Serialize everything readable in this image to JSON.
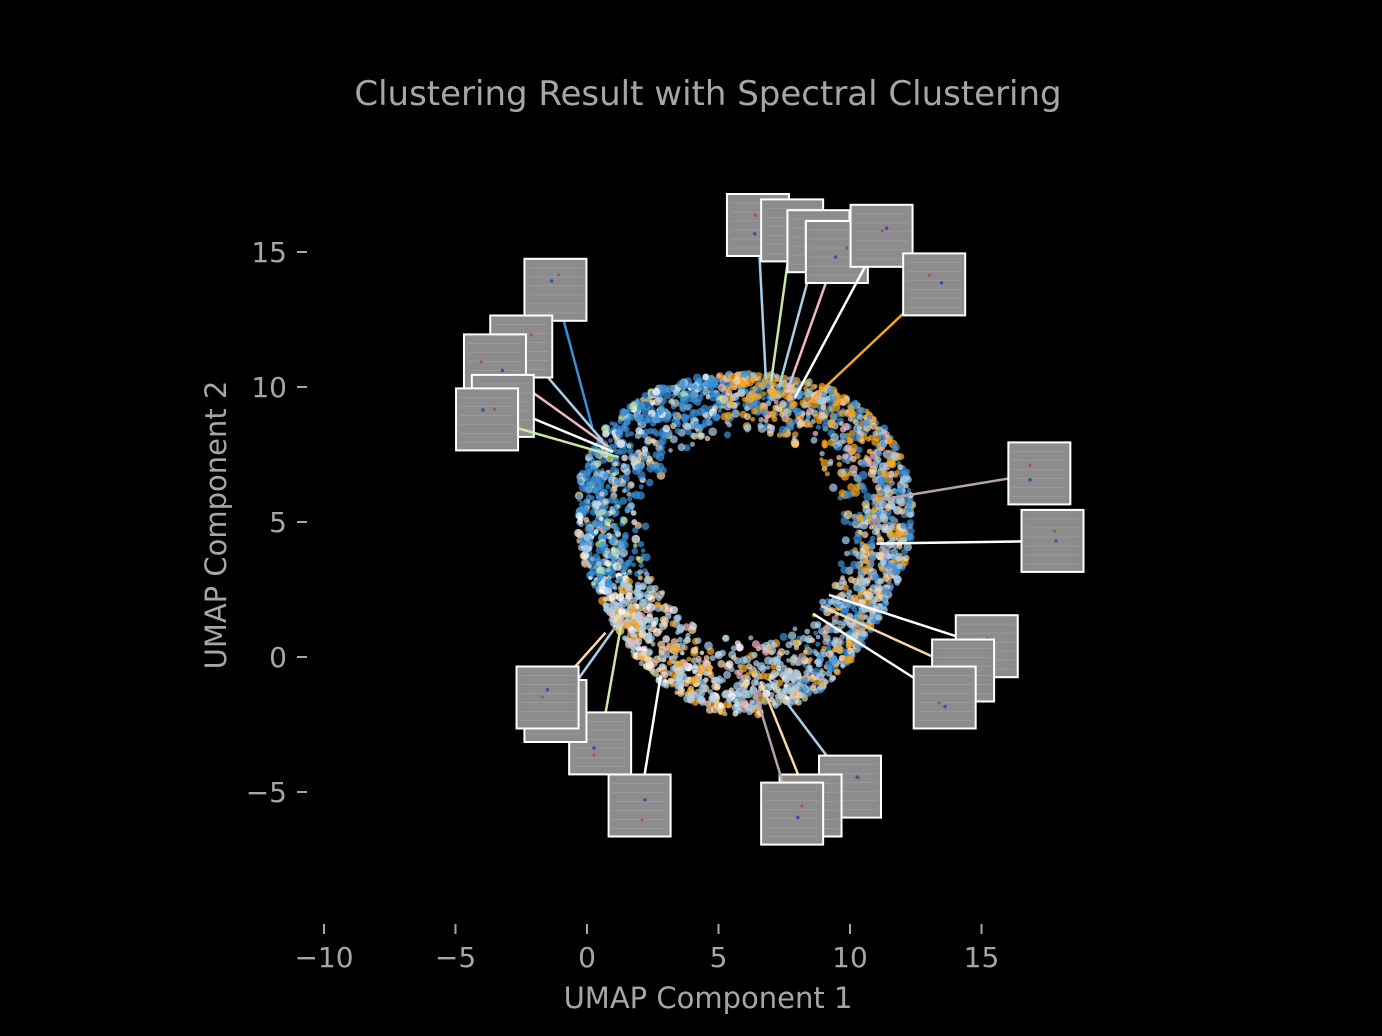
{
  "chart_data": {
    "type": "scatter",
    "title": "Clustering Result with Spectral Clustering",
    "xlabel": "UMAP Component 1",
    "ylabel": "UMAP Component 2",
    "xlim": [
      -12,
      18
    ],
    "ylim": [
      -10,
      19
    ],
    "x_ticks": [
      -10,
      -5,
      0,
      5,
      10,
      15
    ],
    "y_ticks": [
      -5,
      0,
      5,
      10,
      15
    ],
    "x_tick_labels": [
      "−10",
      "−5",
      "0",
      "5",
      "10",
      "15"
    ],
    "y_tick_labels": [
      "−5",
      "0",
      "5",
      "10",
      "15"
    ],
    "grid": false,
    "background": "#000000",
    "text_color": "#a6a6a6",
    "cluster_colors": [
      "#3a8fd6",
      "#f5a623",
      "#a9cfe8",
      "#f7d7a8",
      "#f0b8c4",
      "#c9e8a2",
      "#ffffff",
      "#b5a0b0"
    ],
    "ring": {
      "center": [
        6,
        4.5
      ],
      "inner_radius": 3.2,
      "outer_radius": 6.6
    },
    "thumbnail_annotations": [
      {
        "target": [
          0.2,
          8.5
        ],
        "thumb": [
          -1.2,
          13.6
        ],
        "color": "#3a8fd6"
      },
      {
        "target": [
          0.6,
          8.0
        ],
        "thumb": [
          -2.5,
          11.5
        ],
        "color": "#a9cfe8"
      },
      {
        "target": [
          0.8,
          7.8
        ],
        "thumb": [
          -3.5,
          10.8
        ],
        "color": "#f0b8c4"
      },
      {
        "target": [
          1.0,
          7.6
        ],
        "thumb": [
          -3.2,
          9.3
        ],
        "color": "#ffffff"
      },
      {
        "target": [
          1.2,
          7.4
        ],
        "thumb": [
          -3.8,
          8.8
        ],
        "color": "#c9e8a2"
      },
      {
        "target": [
          6.8,
          10.3
        ],
        "thumb": [
          6.5,
          16.0
        ],
        "color": "#a9cfe8"
      },
      {
        "target": [
          7.0,
          10.2
        ],
        "thumb": [
          7.8,
          15.8
        ],
        "color": "#c9e8a2"
      },
      {
        "target": [
          7.3,
          10.0
        ],
        "thumb": [
          8.8,
          15.4
        ],
        "color": "#a9cfe8"
      },
      {
        "target": [
          7.6,
          9.8
        ],
        "thumb": [
          9.5,
          15.0
        ],
        "color": "#f0b8c4"
      },
      {
        "target": [
          7.9,
          9.6
        ],
        "thumb": [
          11.2,
          15.6
        ],
        "color": "#ffffff"
      },
      {
        "target": [
          8.3,
          9.3
        ],
        "thumb": [
          13.2,
          13.8
        ],
        "color": "#f5a623"
      },
      {
        "target": [
          11.0,
          5.8
        ],
        "thumb": [
          17.2,
          6.8
        ],
        "color": "#b5a0b0"
      },
      {
        "target": [
          11.0,
          4.2
        ],
        "thumb": [
          17.7,
          4.3
        ],
        "color": "#ffffff"
      },
      {
        "target": [
          9.2,
          2.3
        ],
        "thumb": [
          15.2,
          0.4
        ],
        "color": "#ffffff"
      },
      {
        "target": [
          8.9,
          1.9
        ],
        "thumb": [
          14.3,
          -0.5
        ],
        "color": "#f7d7a8"
      },
      {
        "target": [
          8.6,
          1.6
        ],
        "thumb": [
          13.6,
          -1.5
        ],
        "color": "#ffffff"
      },
      {
        "target": [
          6.9,
          -0.8
        ],
        "thumb": [
          10.0,
          -4.8
        ],
        "color": "#a9cfe8"
      },
      {
        "target": [
          6.6,
          -0.9
        ],
        "thumb": [
          8.5,
          -5.5
        ],
        "color": "#f7d7a8"
      },
      {
        "target": [
          6.3,
          -1.0
        ],
        "thumb": [
          7.8,
          -5.8
        ],
        "color": "#b5a0b0"
      },
      {
        "target": [
          2.8,
          -0.7
        ],
        "thumb": [
          2.0,
          -5.5
        ],
        "color": "#ffffff"
      },
      {
        "target": [
          1.3,
          1.2
        ],
        "thumb": [
          0.5,
          -3.2
        ],
        "color": "#c9e8a2"
      },
      {
        "target": [
          1.0,
          1.0
        ],
        "thumb": [
          -1.2,
          -2.0
        ],
        "color": "#a9cfe8"
      },
      {
        "target": [
          0.7,
          0.9
        ],
        "thumb": [
          -1.5,
          -1.5
        ],
        "color": "#f7d7a8"
      }
    ]
  }
}
